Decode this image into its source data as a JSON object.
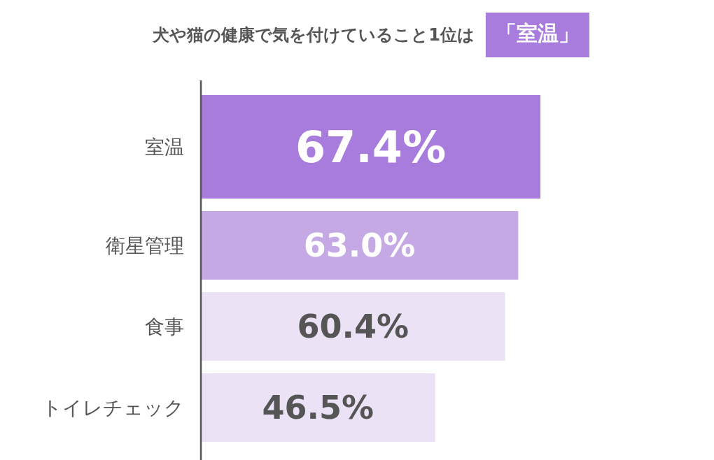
{
  "chart_data": {
    "type": "bar",
    "orientation": "horizontal",
    "title": "犬や猫の健康で気を付けていること1位は",
    "subtitle": "「室温」",
    "categories": [
      "室温",
      "衛星管理",
      "食事",
      "トイレチェック"
    ],
    "values": [
      67.4,
      63.0,
      60.4,
      46.5
    ],
    "value_labels": [
      "67.4%",
      "63.0%",
      "60.4%",
      "46.5%"
    ],
    "colors": [
      "#a77cdc",
      "#c4a9e5",
      "#ebe2f6",
      "#ebe2f6"
    ]
  }
}
